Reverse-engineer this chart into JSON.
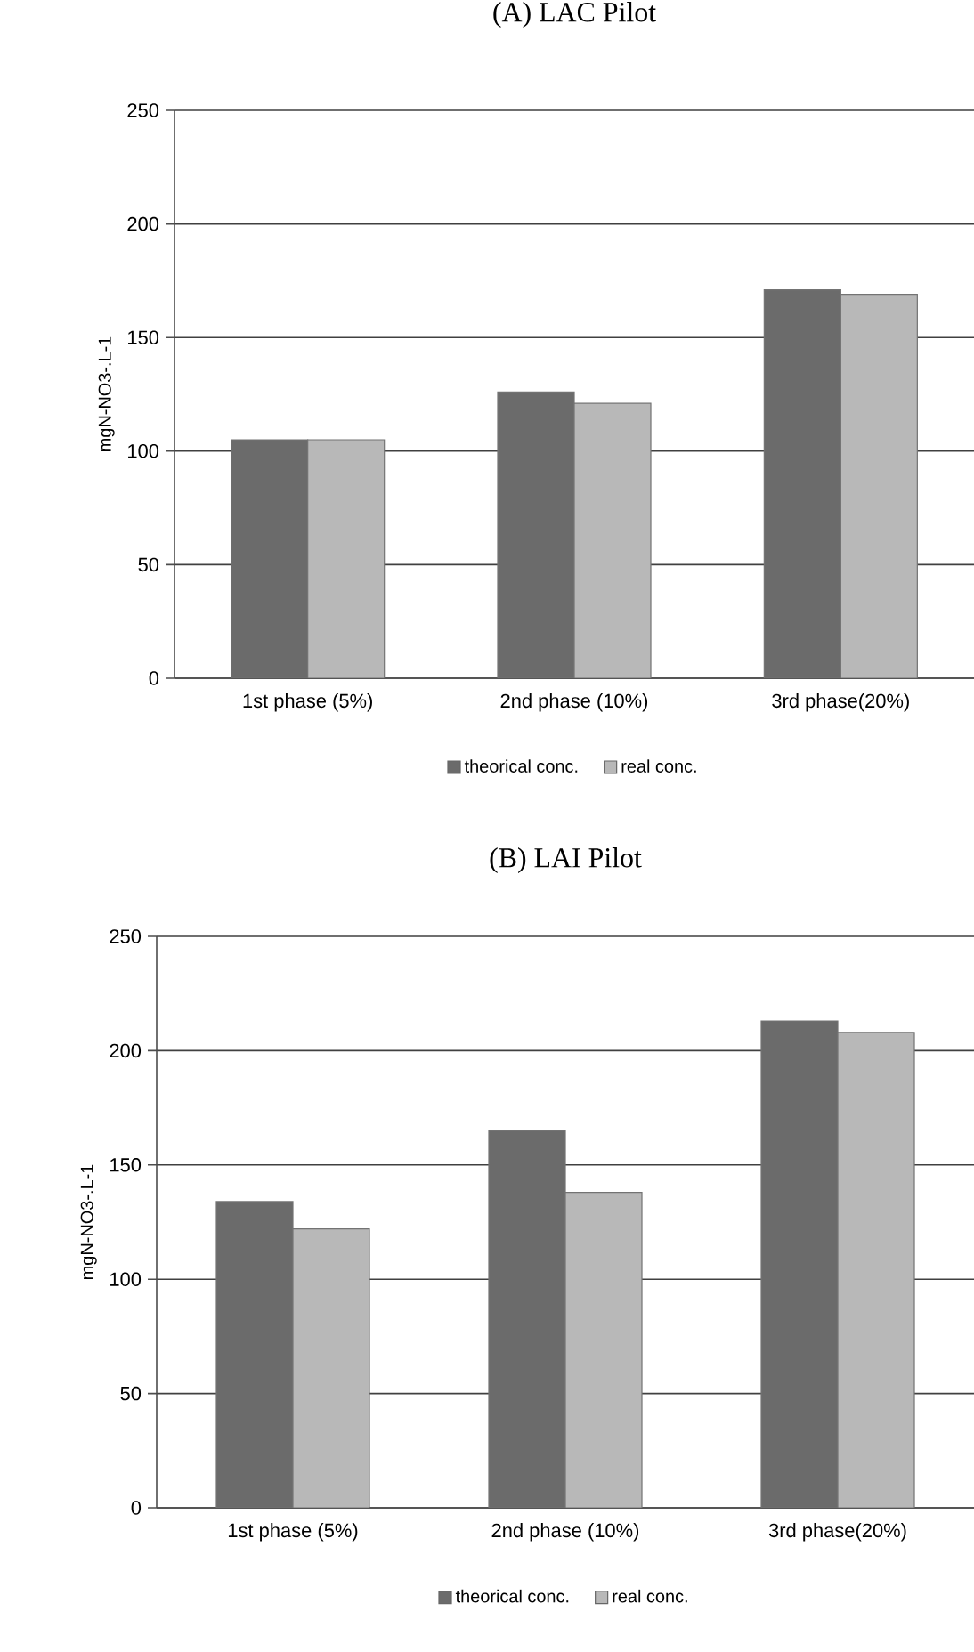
{
  "chart_data": [
    {
      "type": "bar",
      "title": "(A) LAC Pilot",
      "ylabel": "mgN-NO3-.L-1",
      "categories": [
        "1st phase (5%)",
        "2nd phase (10%)",
        "3rd phase(20%)"
      ],
      "series": [
        {
          "name": "theorical conc.",
          "color": "#6b6b6b",
          "values": [
            105,
            126,
            171
          ]
        },
        {
          "name": "real conc.",
          "color": "#b8b8b8",
          "values": [
            105,
            121,
            169
          ]
        }
      ],
      "ylim": [
        0,
        250
      ],
      "yticks": [
        0,
        50,
        100,
        150,
        200,
        250
      ],
      "grid": "y",
      "legend": "bottom"
    },
    {
      "type": "bar",
      "title": "(B) LAI Pilot",
      "ylabel": "mgN-NO3-.L-1",
      "categories": [
        "1st phase (5%)",
        "2nd phase (10%)",
        "3rd phase(20%)"
      ],
      "series": [
        {
          "name": "theorical conc.",
          "color": "#6b6b6b",
          "values": [
            134,
            165,
            213
          ]
        },
        {
          "name": "real conc.",
          "color": "#b8b8b8",
          "values": [
            122,
            138,
            208
          ]
        }
      ],
      "ylim": [
        0,
        250
      ],
      "yticks": [
        0,
        50,
        100,
        150,
        200,
        250
      ],
      "grid": "y",
      "legend": "bottom"
    }
  ]
}
